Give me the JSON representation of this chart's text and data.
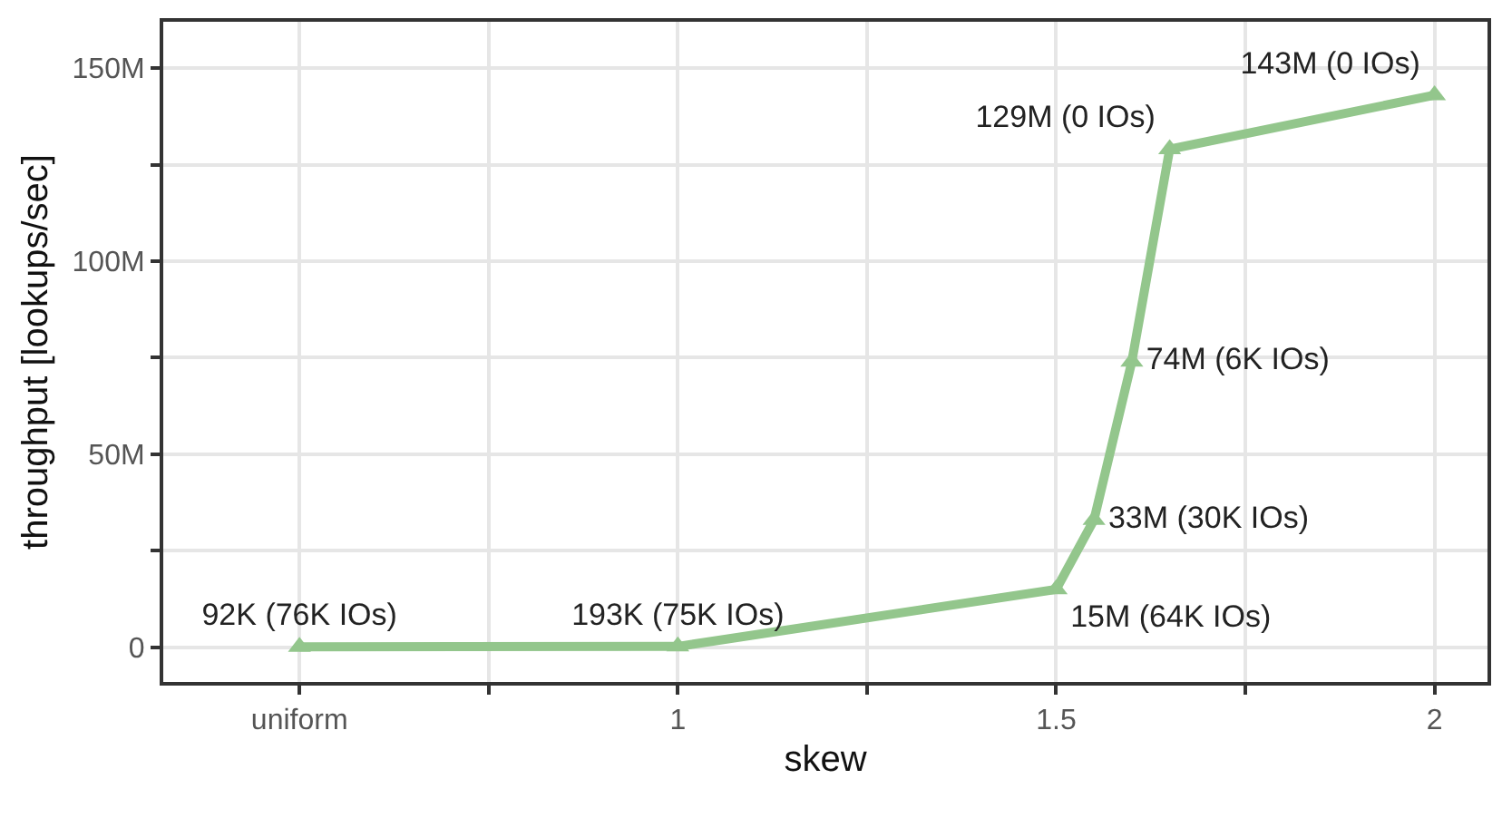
{
  "chart_data": {
    "type": "line",
    "xlabel": "skew",
    "ylabel": "throughput [lookups/sec]",
    "x": [
      0.5,
      1,
      1.5,
      1.55,
      1.6,
      1.65,
      2
    ],
    "series": [
      {
        "color": "#93c68c",
        "values": [
          92000,
          193000,
          15000000,
          33000000,
          74000000,
          129000000,
          143000000
        ],
        "value_labels": [
          "92K (76K IOs)",
          "193K (75K IOs)",
          "15M (64K IOs)",
          "33M (30K IOs)",
          "74M (6K IOs)",
          "129M (0 IOs)",
          "143M (0 IOs)"
        ]
      }
    ],
    "xlim": [
      0.32,
      2.07
    ],
    "xticks": [
      {
        "value": 0.5,
        "label": "uniform"
      },
      {
        "value": 0.75,
        "label": null
      },
      1,
      {
        "value": 1.25,
        "label": null
      },
      1.5,
      {
        "value": 1.75,
        "label": null
      },
      2
    ],
    "ylim": [
      -9000000,
      162000000
    ],
    "yticks": [
      {
        "value": 0,
        "label": "0"
      },
      {
        "value": 25000000,
        "label": null
      },
      {
        "value": 50000000,
        "label": "50M"
      },
      {
        "value": 75000000,
        "label": null
      },
      {
        "value": 100000000,
        "label": "100M"
      },
      {
        "value": 125000000,
        "label": null
      },
      {
        "value": 150000000,
        "label": "150M"
      }
    ],
    "grid": true,
    "marker": "triangle",
    "line_style": "solid"
  }
}
